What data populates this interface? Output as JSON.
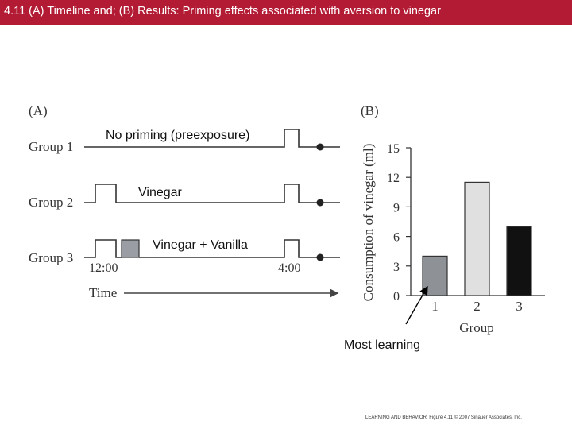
{
  "header": {
    "title": "4.11 (A) Timeline and; (B) Results: Priming effects associated with aversion to vinegar"
  },
  "panel_a": {
    "label": "(A)",
    "groups": [
      "Group 1",
      "Group 2",
      "Group 3"
    ],
    "time_start": "12:00",
    "time_end": "4:00",
    "time_label": "Time",
    "annotations": {
      "group1": "No priming (preexposure)",
      "group2": "Vinegar",
      "group3": "Vinegar + Vanilla"
    }
  },
  "chart_data": {
    "type": "bar",
    "panel_label": "(B)",
    "categories": [
      "1",
      "2",
      "3"
    ],
    "values": [
      4,
      11.5,
      7
    ],
    "colors": [
      "#8e9196",
      "#e0e0e0",
      "#111111"
    ],
    "xlabel": "Group",
    "ylabel": "Consumption of vinegar (ml)",
    "ylim": [
      0,
      15
    ],
    "yticks": [
      0,
      3,
      6,
      9,
      12,
      15
    ],
    "grid": false
  },
  "callout": {
    "text": "Most learning"
  },
  "footer": {
    "credit": "LEARNING AND BEHAVIOR, Figure 4.11 © 2007 Sinauer Associates, Inc."
  }
}
